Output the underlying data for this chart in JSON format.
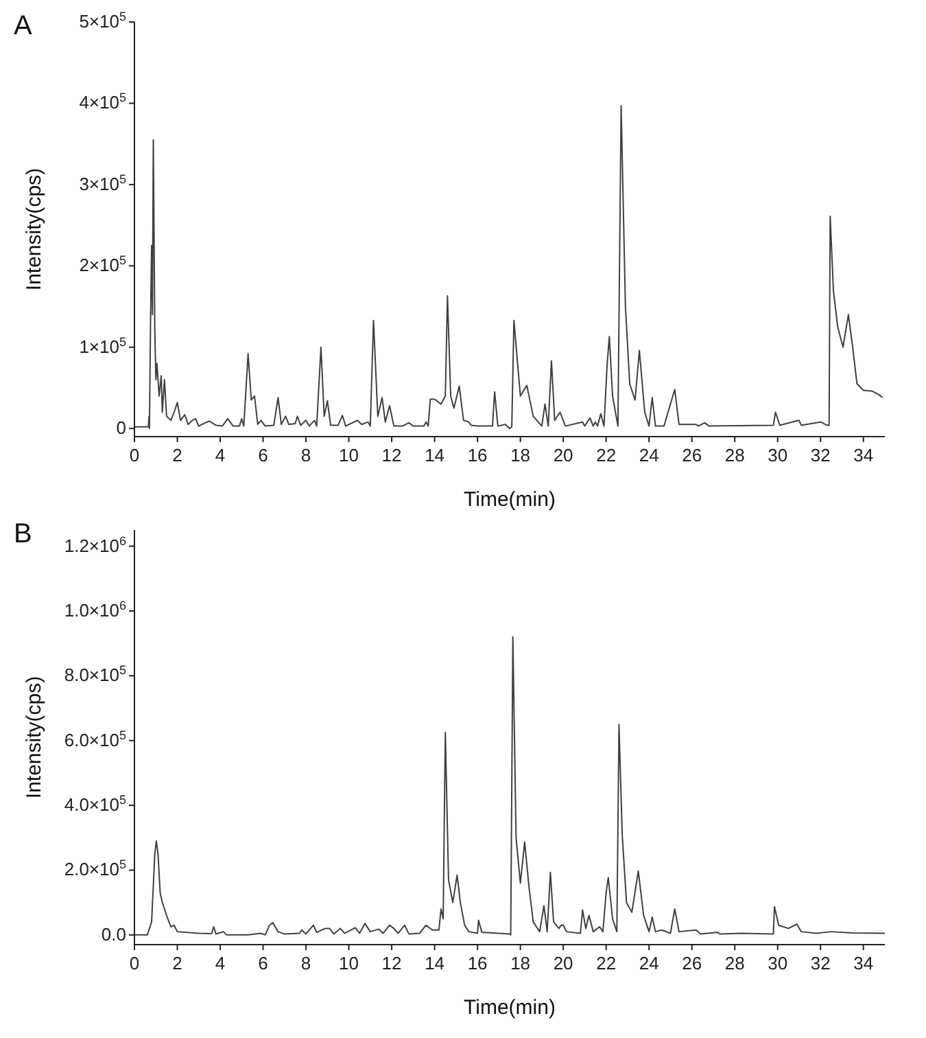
{
  "chart_data": [
    {
      "type": "line",
      "title": "A",
      "xlabel": "Time(min)",
      "ylabel": "Intensity(cps)",
      "marker": "none",
      "line_style": "solid",
      "grid": false,
      "legend": false,
      "x": [
        0,
        0.65,
        0.68,
        0.7,
        0.75,
        0.8,
        0.84,
        0.88,
        0.95,
        1.0,
        1.05,
        1.15,
        1.25,
        1.3,
        1.4,
        1.5,
        1.7,
        1.85,
        2.0,
        2.15,
        2.35,
        2.5,
        2.7,
        2.85,
        3.0,
        3.3,
        3.5,
        3.8,
        4.1,
        4.35,
        4.6,
        4.9,
        5.0,
        5.1,
        5.3,
        5.45,
        5.6,
        5.75,
        5.9,
        6.1,
        6.5,
        6.7,
        6.85,
        7.05,
        7.2,
        7.5,
        7.6,
        7.75,
        8.0,
        8.15,
        8.4,
        8.5,
        8.7,
        8.85,
        9.0,
        9.15,
        9.5,
        9.7,
        9.85,
        10.4,
        10.6,
        10.9,
        11.0,
        11.15,
        11.35,
        11.55,
        11.7,
        11.9,
        12.1,
        12.5,
        12.8,
        13.0,
        13.5,
        13.6,
        13.7,
        13.8,
        14.0,
        14.3,
        14.5,
        14.6,
        14.75,
        14.9,
        15.15,
        15.35,
        15.6,
        15.7,
        16.0,
        16.7,
        16.8,
        16.95,
        17.3,
        17.5,
        17.6,
        17.7,
        18.0,
        18.3,
        18.6,
        19.0,
        19.15,
        19.3,
        19.45,
        19.6,
        19.85,
        20.0,
        20.1,
        20.9,
        21.0,
        21.25,
        21.4,
        21.5,
        21.6,
        21.75,
        21.9,
        22.05,
        22.15,
        22.3,
        22.55,
        22.7,
        22.9,
        23.1,
        23.35,
        23.55,
        23.8,
        24.0,
        24.15,
        24.3,
        24.7,
        25.2,
        25.4,
        26.2,
        26.3,
        26.6,
        26.8,
        29.8,
        29.9,
        30.1,
        31.0,
        31.1,
        32.0,
        32.3,
        32.4,
        32.45,
        32.6,
        32.8,
        33.05,
        33.3,
        33.5,
        33.7,
        34.0,
        34.4,
        34.7,
        34.9
      ],
      "series": [
        {
          "color": "#404040",
          "values": [
            2000,
            2000,
            15000,
            0,
            130000,
            225000,
            140000,
            355000,
            120000,
            60000,
            80000,
            40000,
            65000,
            20000,
            60000,
            15000,
            10000,
            20000,
            32000,
            10000,
            17000,
            5000,
            10000,
            12000,
            3000,
            7000,
            9000,
            4000,
            3000,
            12000,
            3000,
            3000,
            12000,
            3000,
            92000,
            35000,
            40000,
            5000,
            10000,
            3000,
            4000,
            38000,
            5000,
            15000,
            5000,
            6000,
            15000,
            4000,
            10000,
            3000,
            10000,
            3000,
            100000,
            15000,
            34000,
            4000,
            4000,
            16000,
            3000,
            10000,
            5000,
            8000,
            3000,
            133000,
            15000,
            38000,
            8000,
            28000,
            3000,
            3000,
            7000,
            3000,
            3000,
            8000,
            3000,
            36000,
            36000,
            30000,
            40000,
            163000,
            40000,
            25000,
            52000,
            10000,
            8000,
            4000,
            3000,
            3000,
            45000,
            3000,
            5000,
            0,
            2000,
            133000,
            40000,
            53000,
            15000,
            3000,
            30000,
            3000,
            83000,
            10000,
            20000,
            10000,
            3000,
            8000,
            3000,
            13000,
            3000,
            8000,
            3000,
            18000,
            3000,
            80000,
            113000,
            40000,
            3000,
            397000,
            150000,
            55000,
            35000,
            96000,
            20000,
            3000,
            38000,
            3000,
            3000,
            48000,
            5000,
            5000,
            3000,
            7000,
            3000,
            4000,
            20000,
            4000,
            10000,
            4000,
            8000,
            4000,
            4000,
            261000,
            170000,
            125000,
            100000,
            140000,
            100000,
            55000,
            47000,
            46000,
            42000,
            38000
          ]
        }
      ],
      "xlim": [
        0,
        35
      ],
      "xticks": [
        0,
        2,
        4,
        6,
        8,
        10,
        12,
        14,
        16,
        18,
        20,
        22,
        24,
        26,
        28,
        30,
        32,
        34
      ],
      "ylim": [
        -10000,
        500000
      ],
      "yticks": [
        0,
        {
          "value": 100000,
          "label": "1×10$^{5}$"
        },
        {
          "value": 200000,
          "label": "2×10$^{5}$"
        },
        {
          "value": 300000,
          "label": "3×10$^{5}$"
        },
        {
          "value": 400000,
          "label": "4×10$^{5}$"
        },
        {
          "value": 500000,
          "label": "5×10$^{5}$"
        }
      ]
    },
    {
      "type": "line",
      "title": "B",
      "xlabel": "Time(min)",
      "ylabel": "Intensity(cps)",
      "marker": "none",
      "line_style": "solid",
      "grid": false,
      "legend": false,
      "x": [
        0,
        0.6,
        0.8,
        0.95,
        1.02,
        1.1,
        1.2,
        1.3,
        1.5,
        1.7,
        1.85,
        2.0,
        3.0,
        3.6,
        3.7,
        3.8,
        4.15,
        4.3,
        5.3,
        5.9,
        6.1,
        6.3,
        6.45,
        6.7,
        7.0,
        7.7,
        7.8,
        8.0,
        8.35,
        8.5,
        8.9,
        9.1,
        9.3,
        9.6,
        9.8,
        10.3,
        10.5,
        10.75,
        11.0,
        11.4,
        11.6,
        11.9,
        12.1,
        12.3,
        12.6,
        12.8,
        13.3,
        13.6,
        13.9,
        14.2,
        14.3,
        14.4,
        14.5,
        14.65,
        14.85,
        15.05,
        15.2,
        15.4,
        15.6,
        16.0,
        16.05,
        16.2,
        17.5,
        17.55,
        17.65,
        17.8,
        18.0,
        18.2,
        18.4,
        18.6,
        18.9,
        19.1,
        19.25,
        19.4,
        19.55,
        19.8,
        19.9,
        20.0,
        20.15,
        20.8,
        20.9,
        21.05,
        21.2,
        21.4,
        21.7,
        21.85,
        22.0,
        22.1,
        22.3,
        22.5,
        22.6,
        22.75,
        22.95,
        23.2,
        23.5,
        23.75,
        24.0,
        24.15,
        24.3,
        24.6,
        25.0,
        25.2,
        25.4,
        26.2,
        26.4,
        27.2,
        27.3,
        28.3,
        29.8,
        29.85,
        30.05,
        30.5,
        30.9,
        31.1,
        31.8,
        32.5,
        33.5,
        35
      ],
      "series": [
        {
          "color": "#404040",
          "values": [
            0,
            0,
            40000,
            250000,
            290000,
            250000,
            130000,
            100000,
            60000,
            25000,
            30000,
            10000,
            5000,
            4000,
            25000,
            3000,
            10000,
            0,
            0,
            5000,
            0,
            30000,
            38000,
            10000,
            3000,
            5000,
            15000,
            3000,
            30000,
            8000,
            20000,
            20000,
            3000,
            20000,
            5000,
            22000,
            5000,
            35000,
            10000,
            18000,
            5000,
            30000,
            20000,
            5000,
            30000,
            3000,
            5000,
            30000,
            15000,
            15000,
            80000,
            50000,
            625000,
            170000,
            100000,
            185000,
            100000,
            30000,
            10000,
            5000,
            45000,
            8000,
            3000,
            0,
            920000,
            300000,
            160000,
            287000,
            150000,
            40000,
            10000,
            90000,
            10000,
            193000,
            40000,
            20000,
            30000,
            30000,
            10000,
            5000,
            77000,
            20000,
            60000,
            10000,
            25000,
            10000,
            130000,
            177000,
            50000,
            10000,
            650000,
            310000,
            100000,
            70000,
            197000,
            60000,
            10000,
            55000,
            10000,
            15000,
            5000,
            80000,
            10000,
            15000,
            3000,
            8000,
            3000,
            5000,
            3000,
            87000,
            30000,
            20000,
            33000,
            10000,
            5000,
            10000,
            6000,
            5000
          ]
        }
      ],
      "xlim": [
        0,
        35
      ],
      "xticks": [
        0,
        2,
        4,
        6,
        8,
        10,
        12,
        14,
        16,
        18,
        20,
        22,
        24,
        26,
        28,
        30,
        32,
        34
      ],
      "ylim": [
        -30000,
        1250000
      ],
      "yticks": [
        {
          "value": 0,
          "label": "0.0"
        },
        {
          "value": 200000,
          "label": "2.0×10$^{5}$"
        },
        {
          "value": 400000,
          "label": "4.0×10$^{5}$"
        },
        {
          "value": 600000,
          "label": "6.0×10$^{5}$"
        },
        {
          "value": 800000,
          "label": "8.0×10$^{5}$"
        },
        {
          "value": 1000000,
          "label": "1.0×10$^{6}$"
        },
        {
          "value": 1200000,
          "label": "1.2×10$^{6}$"
        }
      ]
    }
  ]
}
